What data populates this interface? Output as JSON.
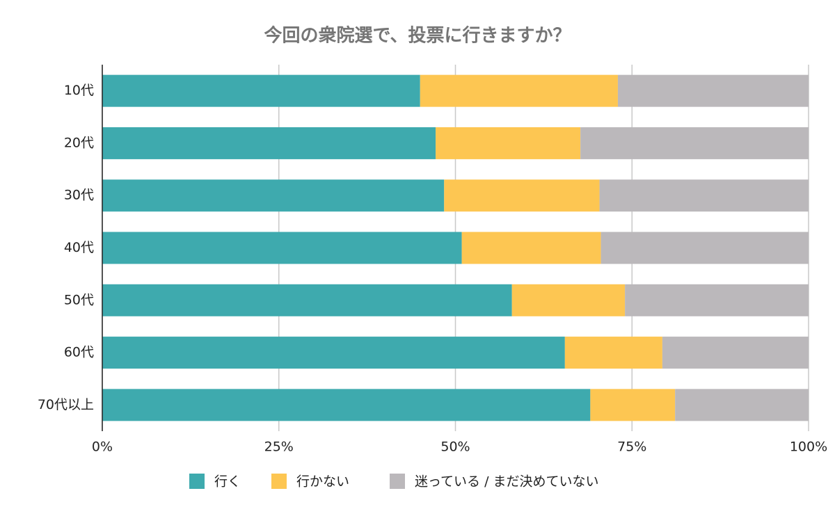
{
  "chart_data": {
    "type": "stacked-bar-horizontal",
    "title": "今回の衆院選で、投票に行きますか？",
    "categories": [
      "10代",
      "20代",
      "30代",
      "40代",
      "50代",
      "60代",
      "70代以上"
    ],
    "series": [
      {
        "name": "行く",
        "color": "#3eaaae",
        "values": [
          45.0,
          47.2,
          48.4,
          50.9,
          58.0,
          65.5,
          69.1
        ]
      },
      {
        "name": "行かない",
        "color": "#fdc652",
        "values": [
          28.0,
          20.5,
          22.0,
          19.7,
          16.0,
          13.8,
          12.0
        ]
      },
      {
        "name": "迷っている / まだ決めていない",
        "color": "#bbb8bb",
        "values": [
          27.0,
          32.3,
          29.6,
          29.4,
          26.0,
          20.7,
          18.9
        ]
      }
    ],
    "xlim": [
      0,
      100
    ],
    "xticks": [
      {
        "value": 0,
        "label": "0%"
      },
      {
        "value": 25,
        "label": "25%"
      },
      {
        "value": 50,
        "label": "50%"
      },
      {
        "value": 75,
        "label": "75%"
      },
      {
        "value": 100,
        "label": "100%"
      }
    ],
    "grid": true
  }
}
